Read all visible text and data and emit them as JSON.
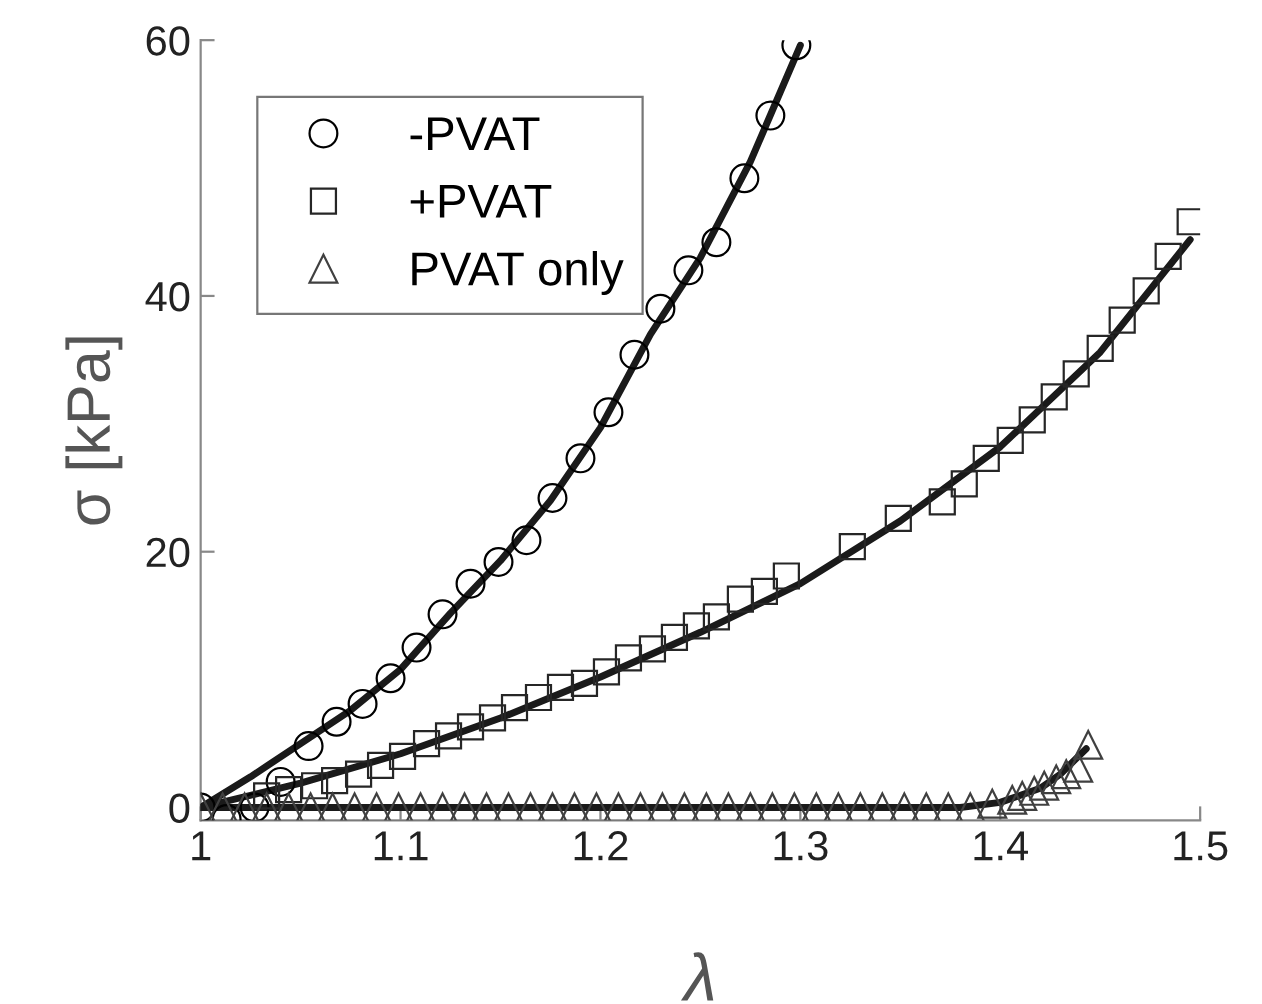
{
  "chart_data": {
    "type": "scatter",
    "xlabel": "λ",
    "ylabel": "σ [kPa]",
    "xlim": [
      1,
      1.5
    ],
    "ylim": [
      -1,
      60
    ],
    "xticks": [
      1,
      1.1,
      1.2,
      1.3,
      1.4,
      1.5
    ],
    "yticks": [
      0,
      20,
      40,
      60
    ],
    "grid": false,
    "legend": "top left",
    "series": [
      {
        "name": "-PVAT",
        "color": "#000000",
        "marker": "circle",
        "x": [
          1.0,
          1.013,
          1.027,
          1.04,
          1.054,
          1.068,
          1.081,
          1.095,
          1.108,
          1.121,
          1.135,
          1.149,
          1.163,
          1.176,
          1.19,
          1.204,
          1.217,
          1.23,
          1.244,
          1.258,
          1.272,
          1.285,
          1.298
        ],
        "values": [
          0,
          -0.9,
          0,
          2,
          4.8,
          6.7,
          8.1,
          10.1,
          12.5,
          15.1,
          17.5,
          19.2,
          20.9,
          24.2,
          27.3,
          30.9,
          35.4,
          39,
          42,
          44.2,
          49.2,
          54.1,
          59.6
        ]
      },
      {
        "name": "+PVAT",
        "color": "#262626",
        "marker": "square",
        "x": [
          1.033,
          1.044,
          1.057,
          1.067,
          1.079,
          1.09,
          1.101,
          1.113,
          1.124,
          1.135,
          1.146,
          1.157,
          1.169,
          1.18,
          1.192,
          1.203,
          1.214,
          1.226,
          1.237,
          1.248,
          1.258,
          1.27,
          1.282,
          1.293,
          1.326,
          1.349,
          1.371,
          1.382,
          1.393,
          1.405,
          1.416,
          1.427,
          1.438,
          1.45,
          1.461,
          1.473,
          1.484,
          1.495
        ],
        "values": [
          0.9,
          1.4,
          1.7,
          2.1,
          2.6,
          3.3,
          4,
          5,
          5.6,
          6.3,
          7,
          7.8,
          8.6,
          9.4,
          9.7,
          10.6,
          11.7,
          12.4,
          13.3,
          14.2,
          14.9,
          16.3,
          16.9,
          18.1,
          20.4,
          22.6,
          23.9,
          25.3,
          27.3,
          28.7,
          30.3,
          32.1,
          33.9,
          35.9,
          38.1,
          40.4,
          43.1,
          45.8
        ]
      },
      {
        "name": "PVAT only",
        "color": "#404040",
        "marker": "triangle",
        "x": [
          1.0,
          1.011,
          1.022,
          1.033,
          1.044,
          1.055,
          1.066,
          1.077,
          1.088,
          1.099,
          1.11,
          1.121,
          1.132,
          1.143,
          1.154,
          1.165,
          1.176,
          1.187,
          1.198,
          1.209,
          1.22,
          1.231,
          1.242,
          1.253,
          1.264,
          1.275,
          1.286,
          1.297,
          1.308,
          1.319,
          1.33,
          1.341,
          1.352,
          1.363,
          1.374,
          1.385,
          1.396,
          1.406,
          1.411,
          1.417,
          1.422,
          1.428,
          1.433,
          1.439,
          1.444
        ],
        "values": [
          0,
          0,
          0,
          0,
          0,
          0,
          0,
          0,
          0,
          0,
          0,
          0,
          0,
          0,
          0,
          0,
          0,
          0,
          0,
          0,
          0,
          0,
          0,
          0,
          0,
          0,
          0,
          0,
          0,
          0,
          0,
          0,
          0,
          0,
          0,
          0,
          0.3,
          0.6,
          0.9,
          1.3,
          1.7,
          2.2,
          2.6,
          3.1,
          4.9
        ]
      },
      {
        "type": "line",
        "color": "#1a1a1a",
        "x": [
          1.0,
          1.025,
          1.05,
          1.075,
          1.1,
          1.125,
          1.15,
          1.175,
          1.2,
          1.225,
          1.25,
          1.275,
          1.3
        ],
        "values": [
          0,
          2.4,
          5,
          7.6,
          10.8,
          15.2,
          19.3,
          24,
          29.7,
          37,
          43,
          50.5,
          59.6
        ]
      },
      {
        "type": "line",
        "color": "#1a1a1a",
        "x": [
          1.0,
          1.05,
          1.1,
          1.15,
          1.2,
          1.25,
          1.3,
          1.35,
          1.4,
          1.45,
          1.495
        ],
        "values": [
          0,
          1.9,
          4.2,
          7,
          10.2,
          13.7,
          17.5,
          22.4,
          28.2,
          35.6,
          44.4
        ]
      },
      {
        "type": "line",
        "color": "#1a1a1a",
        "x": [
          1.0,
          1.2,
          1.38,
          1.4,
          1.42,
          1.43,
          1.443
        ],
        "values": [
          0,
          0,
          0,
          0.4,
          1.5,
          2.6,
          4.6
        ]
      }
    ]
  }
}
